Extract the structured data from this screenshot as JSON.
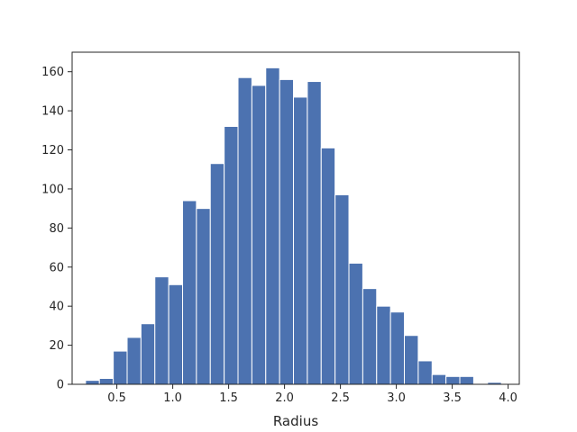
{
  "chart_data": {
    "type": "bar",
    "subtype": "histogram",
    "xlabel": "Radius",
    "ylabel": "",
    "title": "",
    "xlim": [
      0.1,
      4.1
    ],
    "ylim": [
      0,
      170
    ],
    "bin_width": 0.124,
    "bin_start": 0.22,
    "values": [
      2,
      3,
      17,
      24,
      31,
      55,
      51,
      94,
      90,
      113,
      132,
      157,
      153,
      162,
      156,
      147,
      155,
      121,
      97,
      62,
      49,
      40,
      37,
      25,
      12,
      5,
      4,
      4,
      0,
      1
    ],
    "xticks": [
      0.5,
      1.0,
      1.5,
      2.0,
      2.5,
      3.0,
      3.5,
      4.0
    ],
    "xtick_labels": [
      "0.5",
      "1.0",
      "1.5",
      "2.0",
      "2.5",
      "3.0",
      "3.5",
      "4.0"
    ],
    "yticks": [
      0,
      20,
      40,
      60,
      80,
      100,
      120,
      140,
      160
    ],
    "ytick_labels": [
      "0",
      "20",
      "40",
      "60",
      "80",
      "100",
      "120",
      "140",
      "160"
    ],
    "grid": false,
    "legend": "none",
    "bar_color": "#4c72b0",
    "bar_edge_color": "#ffffff"
  }
}
